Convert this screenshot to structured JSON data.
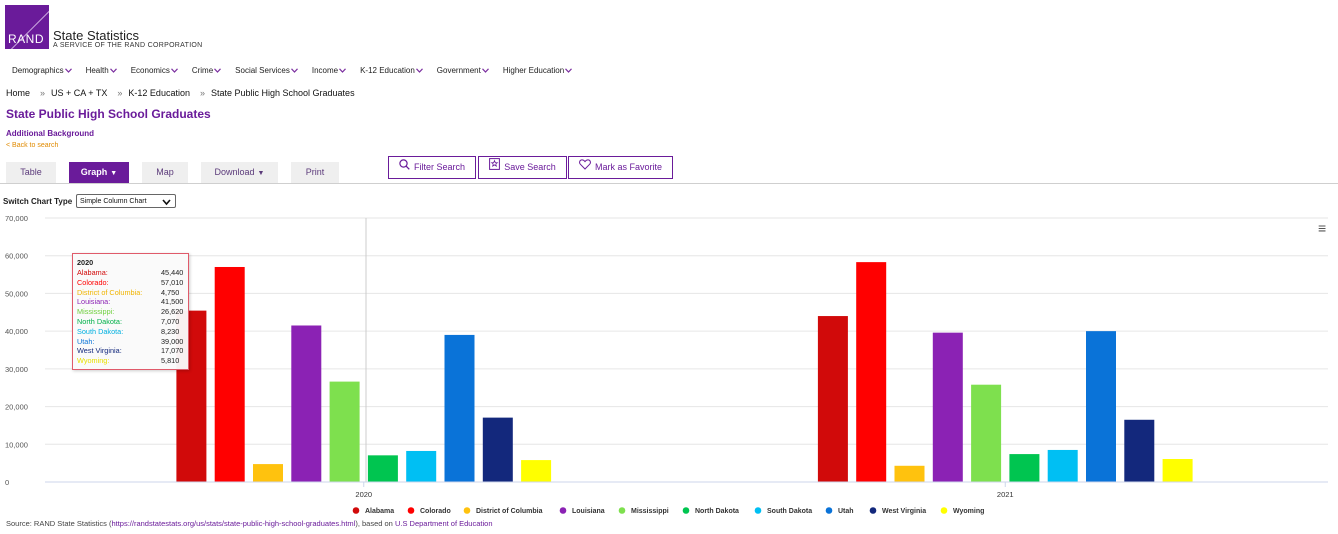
{
  "header": {
    "logo_text": "RAND",
    "site_title": "State Statistics",
    "site_subtitle": "A SERVICE OF THE RAND CORPORATION"
  },
  "nav": {
    "items": [
      "Demographics",
      "Health",
      "Economics",
      "Crime",
      "Social Services",
      "Income",
      "K-12 Education",
      "Government",
      "Higher Education"
    ]
  },
  "breadcrumb": {
    "home": "Home",
    "level1": "US + CA + TX",
    "level2": "K-12 Education",
    "level3": "State Public High School Graduates",
    "sep": "»"
  },
  "page": {
    "title": "State Public High School Graduates",
    "additional_background": "Additional Background",
    "back_link": "< Back to search"
  },
  "tabs": {
    "table": "Table",
    "graph": "Graph",
    "map": "Map",
    "download": "Download",
    "print": "Print",
    "dropdown_glyph": "▼"
  },
  "actions": {
    "filter": "Filter Search",
    "save": "Save Search",
    "favorite": "Mark as Favorite"
  },
  "switch_chart": {
    "label": "Switch Chart Type",
    "value": "Simple Column Chart"
  },
  "menu_icon": "≡",
  "tooltip": {
    "title": "2020",
    "rows": [
      {
        "name": "Alabama:",
        "value": "45,440"
      },
      {
        "name": "Colorado:",
        "value": "57,010"
      },
      {
        "name": "District of Columbia:",
        "value": "4,750"
      },
      {
        "name": "Louisiana:",
        "value": "41,500"
      },
      {
        "name": "Mississippi:",
        "value": "26,620"
      },
      {
        "name": "North Dakota:",
        "value": "7,070"
      },
      {
        "name": "South Dakota:",
        "value": "8,230"
      },
      {
        "name": "Utah:",
        "value": "39,000"
      },
      {
        "name": "West Virginia:",
        "value": "17,070"
      },
      {
        "name": "Wyoming:",
        "value": "5,810"
      }
    ]
  },
  "source": {
    "prefix": "Source: RAND State Statistics (",
    "url": "https://randstatestats.org/us/stats/state-public-high-school-graduates.html",
    "middle": "), based on ",
    "agency": "U.S Department of Education"
  },
  "chart_data": {
    "type": "bar",
    "categories": [
      "2020",
      "2021"
    ],
    "ylim": [
      0,
      70000
    ],
    "yticks": [
      "0",
      "10,000",
      "20,000",
      "30,000",
      "40,000",
      "50,000",
      "60,000",
      "70,000"
    ],
    "grid": true,
    "legend": "bottom",
    "series": [
      {
        "name": "Alabama",
        "values": [
          45440,
          44000
        ],
        "color": "#d10a0a",
        "tooltip_color": "#d10a0a"
      },
      {
        "name": "Colorado",
        "values": [
          57010,
          58300
        ],
        "color": "#ff0000",
        "tooltip_color": "#ff0000"
      },
      {
        "name": "District of Columbia",
        "values": [
          4750,
          4300
        ],
        "color": "#ffc20e",
        "tooltip_color": "#f0b400"
      },
      {
        "name": "Louisiana",
        "values": [
          41500,
          39600
        ],
        "color": "#8b22b4",
        "tooltip_color": "#8b22b4"
      },
      {
        "name": "Mississippi",
        "values": [
          26620,
          25800
        ],
        "color": "#7ee04e",
        "tooltip_color": "#6fcf3e"
      },
      {
        "name": "North Dakota",
        "values": [
          7070,
          7400
        ],
        "color": "#00c550",
        "tooltip_color": "#00b048"
      },
      {
        "name": "South Dakota",
        "values": [
          8230,
          8500
        ],
        "color": "#00bff3",
        "tooltip_color": "#00b0e0"
      },
      {
        "name": "Utah",
        "values": [
          39000,
          40000
        ],
        "color": "#0a73d8",
        "tooltip_color": "#0a73d8"
      },
      {
        "name": "West Virginia",
        "values": [
          17070,
          16500
        ],
        "color": "#13287c",
        "tooltip_color": "#13287c"
      },
      {
        "name": "Wyoming",
        "values": [
          5810,
          6100
        ],
        "color": "#ffff00",
        "tooltip_color": "#e8e000"
      }
    ]
  }
}
